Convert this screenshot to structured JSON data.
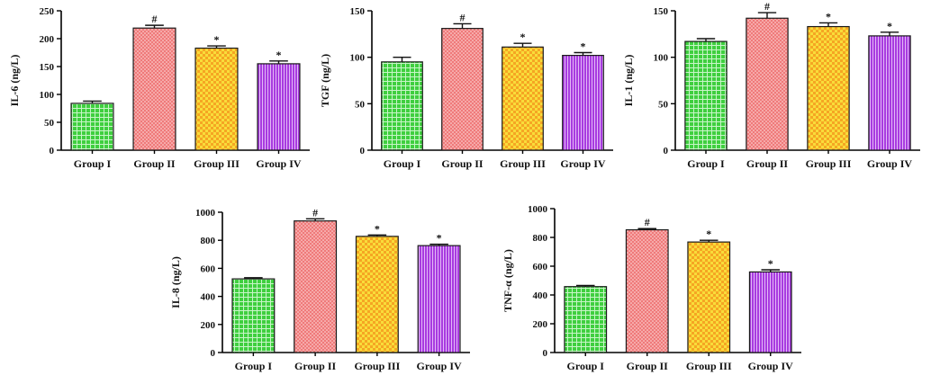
{
  "colors": {
    "group1": "#3fcf3f",
    "group2": "#ef7a7a",
    "group3": "#f5a623",
    "group4": "#a83be0",
    "axis": "#000000"
  },
  "patterns": [
    "grid-icon",
    "dots-icon",
    "checker-icon",
    "vertical-stripes-icon"
  ],
  "chart_data": [
    {
      "type": "bar",
      "title": "",
      "xlabel": "",
      "ylabel": "IL-6 (ng/L)",
      "ylim": [
        0,
        250
      ],
      "ticks": [
        0,
        50,
        100,
        150,
        200,
        250
      ],
      "categories": [
        "Group I",
        "Group II",
        "Group III",
        "Group IV"
      ],
      "values": [
        84,
        219,
        183,
        155
      ],
      "errors": [
        4,
        5,
        4,
        5
      ],
      "markers": [
        "",
        "#",
        "*",
        "*"
      ]
    },
    {
      "type": "bar",
      "title": "",
      "xlabel": "",
      "ylabel": "TGF (ng/L)",
      "ylim": [
        0,
        150
      ],
      "ticks": [
        0,
        50,
        100,
        150
      ],
      "categories": [
        "Group I",
        "Group II",
        "Group III",
        "Group IV"
      ],
      "values": [
        95,
        131,
        111,
        102
      ],
      "errors": [
        5,
        5,
        4,
        3
      ],
      "markers": [
        "",
        "#",
        "*",
        "*"
      ]
    },
    {
      "type": "bar",
      "title": "",
      "xlabel": "",
      "ylabel": "IL-1 (ng/L)",
      "ylim": [
        0,
        150
      ],
      "ticks": [
        0,
        50,
        100,
        150
      ],
      "categories": [
        "Group I",
        "Group II",
        "Group III",
        "Group IV"
      ],
      "values": [
        117,
        142,
        133,
        123
      ],
      "errors": [
        3,
        6,
        4,
        4
      ],
      "markers": [
        "",
        "#",
        "*",
        "*"
      ]
    },
    {
      "type": "bar",
      "title": "",
      "xlabel": "",
      "ylabel": "IL-8 (ng/L)",
      "ylim": [
        0,
        1000
      ],
      "ticks": [
        0,
        200,
        400,
        600,
        800,
        1000
      ],
      "categories": [
        "Group I",
        "Group II",
        "Group III",
        "Group IV"
      ],
      "values": [
        525,
        938,
        828,
        762
      ],
      "errors": [
        8,
        15,
        10,
        10
      ],
      "markers": [
        "",
        "#",
        "*",
        "*"
      ]
    },
    {
      "type": "bar",
      "title": "",
      "xlabel": "",
      "ylabel": "TNF-α (ng/L)",
      "ylim": [
        0,
        1000
      ],
      "ticks": [
        0,
        200,
        400,
        600,
        800,
        1000
      ],
      "categories": [
        "Group I",
        "Group II",
        "Group III",
        "Group IV"
      ],
      "values": [
        458,
        853,
        768,
        560
      ],
      "errors": [
        8,
        8,
        12,
        15
      ],
      "markers": [
        "",
        "#",
        "*",
        "*"
      ]
    }
  ]
}
